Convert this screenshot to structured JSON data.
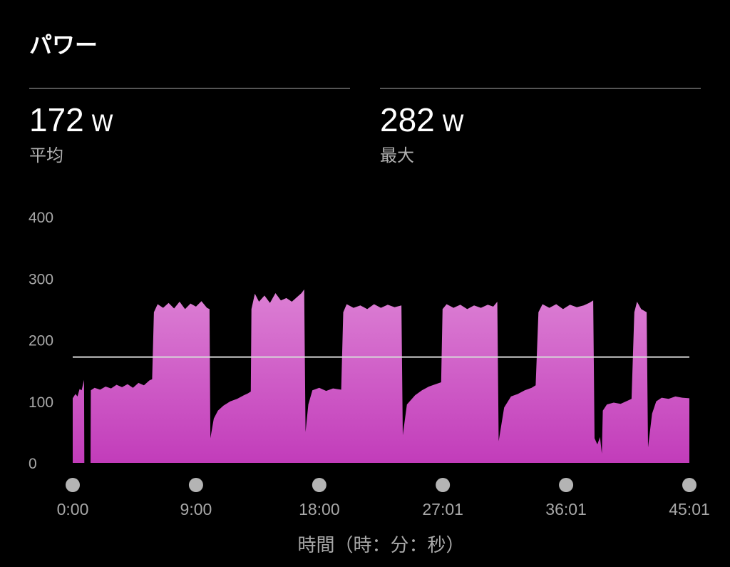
{
  "header": {
    "title": "パワー"
  },
  "stats": [
    {
      "value": "172",
      "unit": "W",
      "label": "平均"
    },
    {
      "value": "282",
      "unit": "W",
      "label": "最大"
    }
  ],
  "colors": {
    "fill_top": "#dc80d4",
    "fill_bottom": "#c23cba",
    "average_line": "#d8d8d8",
    "marker": "#b4b4b4"
  },
  "chart_data": {
    "type": "area",
    "xlabel": "時間（時：分：秒）",
    "ylabel": "",
    "x_unit": "minutes",
    "xlim": [
      0,
      45.02
    ],
    "ylim": [
      0,
      400
    ],
    "yticks": [
      0,
      100,
      200,
      300,
      400
    ],
    "ytick_labels": [
      "0",
      "100",
      "200",
      "300",
      "400"
    ],
    "xticks": [
      0,
      9,
      18,
      27.02,
      36.02,
      45.02
    ],
    "xtick_labels": [
      "0:00",
      "9:00",
      "18:00",
      "27:01",
      "36:01",
      "45:01"
    ],
    "average_line": 172,
    "grid": false,
    "points": [
      [
        0,
        0
      ],
      [
        0,
        105
      ],
      [
        0.2,
        112
      ],
      [
        0.35,
        108
      ],
      [
        0.5,
        120
      ],
      [
        0.65,
        118
      ],
      [
        0.83,
        135
      ],
      [
        0.85,
        0
      ],
      [
        1.3,
        0
      ],
      [
        1.32,
        118
      ],
      [
        1.6,
        122
      ],
      [
        2.0,
        119
      ],
      [
        2.4,
        124
      ],
      [
        2.8,
        121
      ],
      [
        3.2,
        127
      ],
      [
        3.6,
        123
      ],
      [
        4.0,
        128
      ],
      [
        4.4,
        122
      ],
      [
        4.8,
        130
      ],
      [
        5.2,
        126
      ],
      [
        5.6,
        134
      ],
      [
        5.8,
        136
      ],
      [
        5.93,
        245
      ],
      [
        6.2,
        258
      ],
      [
        6.6,
        252
      ],
      [
        7.0,
        260
      ],
      [
        7.4,
        251
      ],
      [
        7.8,
        262
      ],
      [
        8.2,
        250
      ],
      [
        8.6,
        259
      ],
      [
        9.0,
        254
      ],
      [
        9.4,
        263
      ],
      [
        9.8,
        252
      ],
      [
        9.99,
        250
      ],
      [
        10.05,
        40
      ],
      [
        10.3,
        72
      ],
      [
        10.6,
        85
      ],
      [
        11.0,
        93
      ],
      [
        11.5,
        100
      ],
      [
        12.0,
        104
      ],
      [
        12.5,
        110
      ],
      [
        12.8,
        113
      ],
      [
        13.0,
        116
      ],
      [
        13.05,
        250
      ],
      [
        13.3,
        275
      ],
      [
        13.6,
        262
      ],
      [
        14.0,
        272
      ],
      [
        14.4,
        260
      ],
      [
        14.8,
        276
      ],
      [
        15.2,
        264
      ],
      [
        15.6,
        268
      ],
      [
        16.0,
        262
      ],
      [
        16.4,
        270
      ],
      [
        16.7,
        276
      ],
      [
        16.9,
        282
      ],
      [
        17.0,
        50
      ],
      [
        17.2,
        95
      ],
      [
        17.5,
        118
      ],
      [
        18.0,
        122
      ],
      [
        18.5,
        117
      ],
      [
        19.0,
        121
      ],
      [
        19.6,
        119
      ],
      [
        19.75,
        245
      ],
      [
        20.0,
        258
      ],
      [
        20.5,
        252
      ],
      [
        21.0,
        256
      ],
      [
        21.5,
        250
      ],
      [
        22.0,
        258
      ],
      [
        22.5,
        252
      ],
      [
        23.0,
        257
      ],
      [
        23.5,
        253
      ],
      [
        24.0,
        256
      ],
      [
        24.1,
        45
      ],
      [
        24.4,
        95
      ],
      [
        25.0,
        110
      ],
      [
        25.5,
        118
      ],
      [
        26.0,
        124
      ],
      [
        26.5,
        128
      ],
      [
        26.9,
        131
      ],
      [
        27.0,
        250
      ],
      [
        27.3,
        258
      ],
      [
        27.8,
        252
      ],
      [
        28.3,
        257
      ],
      [
        28.8,
        250
      ],
      [
        29.3,
        256
      ],
      [
        29.8,
        252
      ],
      [
        30.3,
        257
      ],
      [
        30.7,
        254
      ],
      [
        31.0,
        262
      ],
      [
        31.1,
        35
      ],
      [
        31.5,
        90
      ],
      [
        32.0,
        108
      ],
      [
        32.5,
        112
      ],
      [
        33.0,
        118
      ],
      [
        33.5,
        122
      ],
      [
        33.8,
        126
      ],
      [
        34.0,
        245
      ],
      [
        34.3,
        258
      ],
      [
        34.8,
        252
      ],
      [
        35.3,
        258
      ],
      [
        35.8,
        250
      ],
      [
        36.3,
        257
      ],
      [
        36.8,
        253
      ],
      [
        37.3,
        256
      ],
      [
        37.7,
        260
      ],
      [
        38.0,
        264
      ],
      [
        38.1,
        40
      ],
      [
        38.3,
        30
      ],
      [
        38.5,
        42
      ],
      [
        38.63,
        15
      ],
      [
        38.7,
        85
      ],
      [
        39.0,
        95
      ],
      [
        39.5,
        98
      ],
      [
        40.0,
        96
      ],
      [
        40.5,
        101
      ],
      [
        40.8,
        104
      ],
      [
        41.0,
        245
      ],
      [
        41.2,
        262
      ],
      [
        41.5,
        250
      ],
      [
        41.9,
        245
      ],
      [
        42.0,
        25
      ],
      [
        42.3,
        80
      ],
      [
        42.6,
        100
      ],
      [
        43.0,
        106
      ],
      [
        43.5,
        104
      ],
      [
        44.0,
        108
      ],
      [
        44.5,
        106
      ],
      [
        45.02,
        105
      ],
      [
        45.02,
        0
      ]
    ]
  }
}
